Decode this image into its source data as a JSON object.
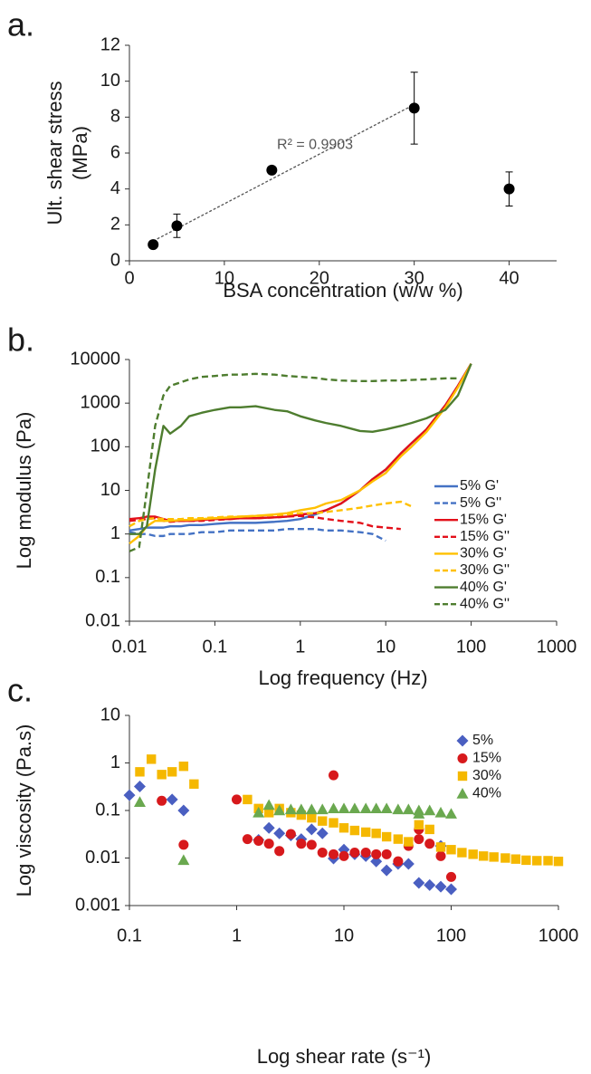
{
  "chart_data": [
    {
      "type": "scatter",
      "panel_label": "a.",
      "xlabel": "BSA concentration (w/w %)",
      "ylabel": [
        "Ult. shear stress",
        "(MPa)"
      ],
      "x": [
        2.5,
        5,
        15,
        30,
        40
      ],
      "values": [
        0.9,
        1.95,
        5.05,
        8.5,
        4.0
      ],
      "errors": [
        null,
        0.65,
        null,
        2.0,
        0.95
      ],
      "color": "#000000",
      "trendline": {
        "x": [
          2.5,
          30
        ],
        "values": [
          1.1,
          8.7
        ],
        "color": "#555555",
        "annotation": "R² = 0.9903"
      },
      "xlim": [
        0,
        45
      ],
      "xticks": [
        0,
        10,
        20,
        30,
        40
      ],
      "ylim": [
        0,
        12
      ],
      "yticks": [
        0,
        2,
        4,
        6,
        8,
        10,
        12
      ]
    },
    {
      "type": "line",
      "panel_label": "b.",
      "log_x": true,
      "log_y": true,
      "xlabel": "Log frequency (Hz)",
      "ylabel": "Log modulus (Pa)",
      "x": [
        0.01,
        0.013,
        0.016,
        0.02,
        0.025,
        0.03,
        0.04,
        0.05,
        0.07,
        0.1,
        0.15,
        0.2,
        0.3,
        0.5,
        0.7,
        1,
        1.5,
        2,
        3,
        5,
        7,
        10,
        15,
        20,
        30,
        50,
        70,
        100
      ],
      "series": [
        {
          "name": "5% G'",
          "color": "#4472c4",
          "dashed": false,
          "values": [
            1.2,
            1.3,
            1.4,
            1.4,
            1.4,
            1.5,
            1.5,
            1.6,
            1.6,
            1.7,
            1.8,
            1.8,
            1.8,
            1.9,
            2,
            2.2,
            2.8,
            3.5,
            5,
            10,
            18,
            30,
            70,
            120,
            250,
            900,
            2500,
            8000
          ]
        },
        {
          "name": "5% G''",
          "color": "#4472c4",
          "dashed": true,
          "values": [
            1.1,
            1,
            1,
            0.9,
            0.9,
            1,
            1,
            1,
            1.1,
            1.1,
            1.2,
            1.2,
            1.2,
            1.2,
            1.3,
            1.3,
            1.3,
            1.2,
            1.2,
            1.1,
            1.0,
            0.7,
            null,
            null,
            null,
            null,
            null,
            null
          ]
        },
        {
          "name": "15% G'",
          "color": "#e3101a",
          "dashed": false,
          "values": [
            2.2,
            2.3,
            2.5,
            2.5,
            2.2,
            2,
            2,
            2,
            2.1,
            2.2,
            2.2,
            2.3,
            2.3,
            2.4,
            2.5,
            2.8,
            3,
            3.5,
            5,
            10,
            18,
            30,
            70,
            120,
            250,
            900,
            2500,
            8000
          ]
        },
        {
          "name": "15% G''",
          "color": "#e3101a",
          "dashed": true,
          "values": [
            2,
            2.1,
            2.2,
            2.3,
            2,
            1.9,
            2,
            2,
            2,
            2.1,
            2.2,
            2.3,
            2.3,
            2.4,
            2.5,
            2.6,
            2.4,
            2.2,
            2,
            1.8,
            1.5,
            1.4,
            1.3,
            null,
            null,
            null,
            null,
            null
          ]
        },
        {
          "name": "30% G'",
          "color": "#ffc000",
          "dashed": false,
          "values": [
            0.6,
            0.9,
            1.5,
            2,
            2,
            2,
            2.1,
            2.1,
            2.2,
            2.3,
            2.4,
            2.5,
            2.6,
            2.8,
            3,
            3.5,
            4,
            5,
            6,
            10,
            16,
            25,
            60,
            100,
            220,
            800,
            2300,
            8000
          ]
        },
        {
          "name": "30% G''",
          "color": "#ffc000",
          "dashed": true,
          "values": [
            1.5,
            2,
            2.2,
            2.3,
            2.2,
            2.2,
            2.2,
            2.3,
            2.3,
            2.4,
            2.5,
            2.5,
            2.6,
            2.7,
            2.8,
            3,
            3,
            3.2,
            3.5,
            4,
            4.5,
            5,
            5.5,
            4.3,
            null,
            null,
            null,
            null
          ]
        },
        {
          "name": "40% G'",
          "color": "#4e7d2f",
          "dashed": false,
          "values": [
            1,
            1,
            1.5,
            30,
            300,
            200,
            300,
            500,
            600,
            700,
            800,
            800,
            850,
            700,
            650,
            500,
            400,
            350,
            300,
            230,
            220,
            250,
            300,
            350,
            450,
            700,
            1500,
            8000
          ]
        },
        {
          "name": "40% G''",
          "color": "#4e7d2f",
          "dashed": true,
          "values": [
            0.4,
            0.5,
            10,
            300,
            1500,
            2500,
            3000,
            3500,
            4000,
            4200,
            4500,
            4500,
            4700,
            4500,
            4200,
            4000,
            3800,
            3500,
            3300,
            3200,
            3200,
            3300,
            3300,
            3400,
            3500,
            3700,
            3700,
            null
          ]
        }
      ],
      "xlim": [
        0.01,
        1000
      ],
      "xticks": [
        0.01,
        0.1,
        1,
        10,
        100,
        1000
      ],
      "ylim": [
        0.01,
        10000
      ],
      "yticks": [
        0.01,
        0.1,
        1,
        10,
        100,
        1000,
        10000
      ],
      "legend": "right"
    },
    {
      "type": "scatter",
      "panel_label": "c.",
      "log_x": true,
      "log_y": true,
      "xlabel": "Log shear rate (s⁻¹)",
      "ylabel": "Log viscosity (Pa.s)",
      "series": [
        {
          "name": "5%",
          "color": "#4a5fc1",
          "marker": "diamond",
          "x": [
            0.1,
            0.125,
            0.25,
            0.32,
            1.6,
            2,
            2.5,
            3.2,
            4,
            5,
            6.3,
            8,
            10,
            12.6,
            16,
            20,
            25,
            32,
            40,
            50,
            63,
            80,
            80,
            100
          ],
          "values": [
            0.21,
            0.32,
            0.17,
            0.1,
            0.024,
            0.043,
            0.033,
            0.03,
            0.025,
            0.04,
            0.033,
            0.0098,
            0.015,
            0.012,
            0.011,
            0.0085,
            0.0055,
            0.0075,
            0.0075,
            0.003,
            0.0027,
            0.018,
            0.0025,
            0.0022
          ]
        },
        {
          "name": "15%",
          "color": "#d7191c",
          "marker": "circle",
          "x": [
            0.2,
            0.32,
            1,
            1.26,
            1.6,
            2,
            2.5,
            3.2,
            4,
            5,
            6.3,
            8,
            8,
            10,
            12.6,
            16,
            20,
            25,
            32,
            40,
            50,
            50,
            63,
            80,
            100
          ],
          "values": [
            0.16,
            0.019,
            0.17,
            0.025,
            0.023,
            0.02,
            0.014,
            0.032,
            0.02,
            0.019,
            0.013,
            0.55,
            0.012,
            0.011,
            0.013,
            0.013,
            0.012,
            0.012,
            0.0085,
            0.018,
            0.025,
            0.04,
            0.02,
            0.011,
            0.004
          ]
        },
        {
          "name": "30%",
          "color": "#f5b800",
          "marker": "square",
          "x": [
            0.125,
            0.16,
            0.2,
            0.25,
            0.32,
            0.4,
            1.26,
            1.6,
            2,
            2.5,
            3.2,
            4,
            5,
            6.3,
            8,
            10,
            12.6,
            16,
            20,
            25,
            32,
            40,
            50,
            63,
            80,
            100,
            126,
            160,
            200,
            250,
            320,
            400,
            500,
            630,
            800,
            1000
          ],
          "values": [
            0.65,
            1.2,
            0.57,
            0.65,
            0.85,
            0.36,
            0.17,
            0.11,
            0.09,
            0.11,
            0.09,
            0.08,
            0.07,
            0.06,
            0.055,
            0.043,
            0.038,
            0.035,
            0.033,
            0.028,
            0.025,
            0.022,
            0.05,
            0.04,
            0.017,
            0.015,
            0.013,
            0.012,
            0.011,
            0.0105,
            0.01,
            0.0095,
            0.009,
            0.0088,
            0.0088,
            0.0085
          ]
        },
        {
          "name": "40%",
          "color": "#6aa84f",
          "marker": "triangle",
          "x": [
            0.125,
            0.32,
            1.6,
            2,
            2.5,
            3.2,
            4,
            5,
            6.3,
            8,
            10,
            12.6,
            16,
            20,
            25,
            32,
            40,
            50,
            50,
            63,
            80,
            100
          ],
          "values": [
            0.15,
            0.009,
            0.09,
            0.13,
            0.1,
            0.105,
            0.105,
            0.105,
            0.105,
            0.11,
            0.11,
            0.11,
            0.11,
            0.11,
            0.11,
            0.105,
            0.105,
            0.1,
            0.085,
            0.1,
            0.09,
            0.085
          ]
        }
      ],
      "xlim": [
        0.1,
        1000
      ],
      "xticks": [
        0.1,
        1,
        10,
        100,
        1000
      ],
      "ylim": [
        0.001,
        10
      ],
      "yticks": [
        0.001,
        0.01,
        0.1,
        1,
        10
      ],
      "legend": "upper right"
    }
  ]
}
